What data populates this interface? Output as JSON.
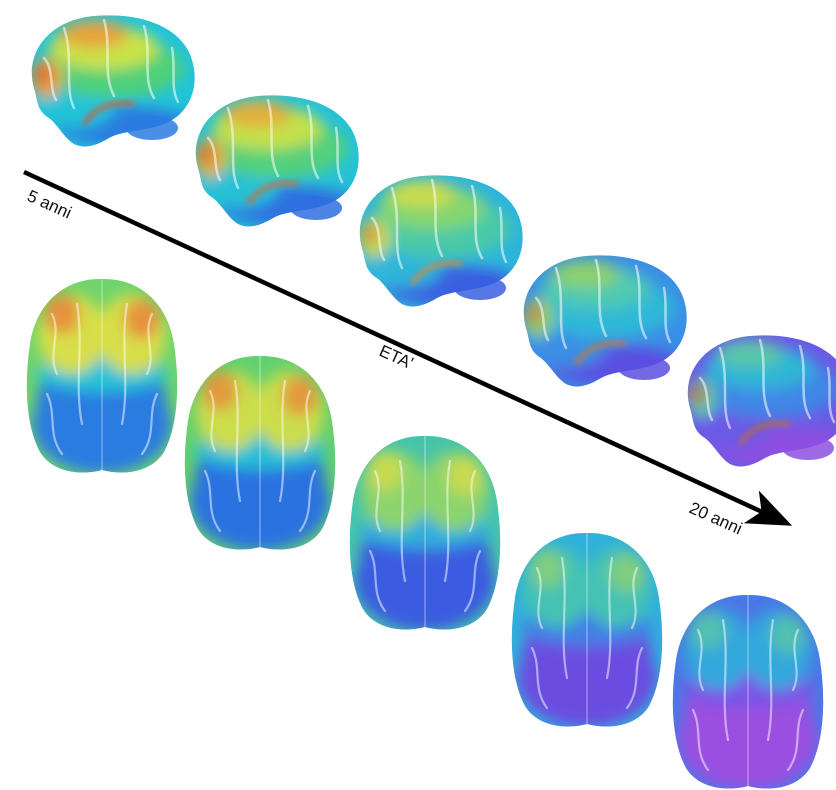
{
  "labels": {
    "start": "5 anni",
    "axis": "ETA'",
    "end": "20 anni"
  },
  "brains": {
    "lateral": [
      {
        "stage": 1,
        "palette": [
          "#2a7be0",
          "#22c3d8",
          "#4fd07a",
          "#c9e24a",
          "#e8a33c",
          "#d65a35"
        ]
      },
      {
        "stage": 2,
        "palette": [
          "#2f6fe0",
          "#26c1d6",
          "#52d07c",
          "#c4e04c",
          "#e2b03e",
          "#d46a38"
        ]
      },
      {
        "stage": 3,
        "palette": [
          "#3a5fe0",
          "#2db5da",
          "#48c9a8",
          "#84d670",
          "#c9dc50",
          "#d28a3a"
        ]
      },
      {
        "stage": 4,
        "palette": [
          "#5a4fe0",
          "#3a8fe6",
          "#2fb8d8",
          "#4fc9b2",
          "#8cd06e",
          "#c47a3a"
        ]
      },
      {
        "stage": 5,
        "palette": [
          "#8d4fe0",
          "#6a5ae6",
          "#3f86e6",
          "#2fb6d6",
          "#5ac6a8",
          "#b86a3c"
        ]
      }
    ],
    "top": [
      {
        "stage": 1,
        "palette": [
          "#2a7be0",
          "#25c2d6",
          "#6fd46c",
          "#d7de4a",
          "#e6923c",
          "#cf4a30"
        ]
      },
      {
        "stage": 2,
        "palette": [
          "#2c72e0",
          "#28bfd6",
          "#64d06e",
          "#cbdd4c",
          "#e29a3c",
          "#cf5530"
        ]
      },
      {
        "stage": 3,
        "palette": [
          "#3a5ce0",
          "#2eaedc",
          "#46c4aa",
          "#8cd46e",
          "#c8da50",
          "#c95a32"
        ]
      },
      {
        "stage": 4,
        "palette": [
          "#6a4de0",
          "#3f80e6",
          "#2fb1da",
          "#45c2b4",
          "#7fce80",
          "#b85a38"
        ]
      },
      {
        "stage": 5,
        "palette": [
          "#9a4fe0",
          "#7a55e6",
          "#4a78e6",
          "#33a8dc",
          "#52c0b0",
          "#a05a40"
        ]
      }
    ]
  }
}
